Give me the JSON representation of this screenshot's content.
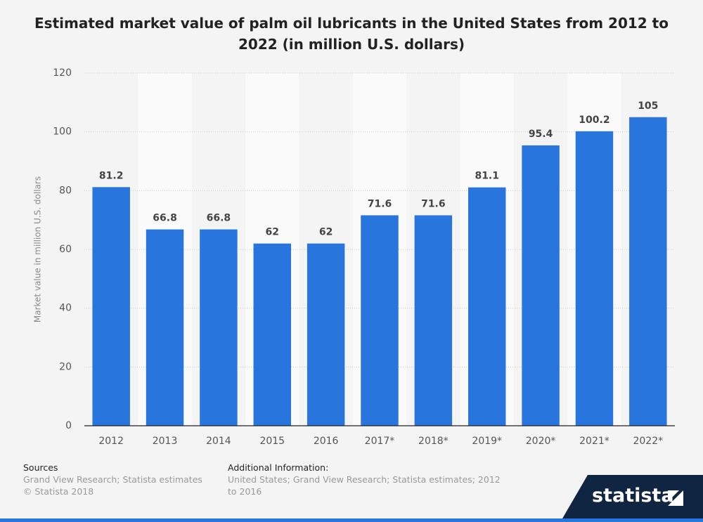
{
  "chart_data": {
    "type": "bar",
    "title": "Estimated market value of palm oil lubricants in the United States from 2012 to 2022 (in million U.S. dollars)",
    "ylabel": "Market value in million U.S. dollars",
    "categories": [
      "2012",
      "2013",
      "2014",
      "2015",
      "2016",
      "2017*",
      "2018*",
      "2019*",
      "2020*",
      "2021*",
      "2022*"
    ],
    "values": [
      81.2,
      66.8,
      66.8,
      62,
      62,
      71.6,
      71.6,
      81.1,
      95.4,
      100.2,
      105
    ],
    "color": "#2876dd",
    "ylim": [
      0,
      120
    ],
    "yticks": [
      0,
      20,
      40,
      60,
      80,
      100,
      120
    ],
    "grid": true
  },
  "footer": {
    "sources_title": "Sources",
    "sources": [
      "Grand View Research; Statista estimates",
      "© Statista 2018"
    ],
    "info_title": "Additional Information:",
    "info": "United States; Grand View Research; Statista estimates; 2012 to 2016",
    "logo": "statista"
  }
}
